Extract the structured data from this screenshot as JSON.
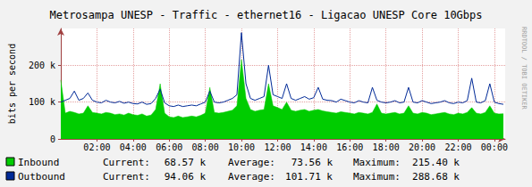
{
  "chart_data": {
    "type": "line",
    "title": "Metrosampa UNESP - Traffic - ethernet16 - Ligacao UNESP Core 10Gbps",
    "y_label": "bits per second",
    "watermark": "RRDTOOL / TOBI OETIKER",
    "stat_labels": [
      "Current:",
      "Average:",
      "Maximum:"
    ],
    "grid": true,
    "xlim": [
      0,
      24.6
    ],
    "xticks": [
      {
        "value": 2,
        "label": "02:00"
      },
      {
        "value": 4,
        "label": "04:00"
      },
      {
        "value": 6,
        "label": "06:00"
      },
      {
        "value": 8,
        "label": "08:00"
      },
      {
        "value": 10,
        "label": "10:00"
      },
      {
        "value": 12,
        "label": "12:00"
      },
      {
        "value": 14,
        "label": "14:00"
      },
      {
        "value": 16,
        "label": "16:00"
      },
      {
        "value": 18,
        "label": "18:00"
      },
      {
        "value": 20,
        "label": "20:00"
      },
      {
        "value": 22,
        "label": "22:00"
      },
      {
        "value": 24,
        "label": "00:00"
      }
    ],
    "ylim": [
      0,
      300000
    ],
    "yticks": [
      0,
      {
        "value": 100000,
        "label": "100 k"
      },
      {
        "value": 200000,
        "label": "200 k"
      }
    ],
    "x": [
      0,
      0.25,
      0.5,
      0.75,
      1,
      1.25,
      1.5,
      1.75,
      2,
      2.25,
      2.5,
      2.75,
      3,
      3.25,
      3.5,
      3.75,
      4,
      4.25,
      4.5,
      4.75,
      5,
      5.25,
      5.5,
      5.75,
      6,
      6.25,
      6.5,
      6.75,
      7,
      7.25,
      7.5,
      7.75,
      8,
      8.25,
      8.5,
      8.75,
      9,
      9.25,
      9.5,
      9.75,
      10,
      10.25,
      10.5,
      10.75,
      11,
      11.25,
      11.5,
      11.75,
      12,
      12.25,
      12.5,
      12.75,
      13,
      13.25,
      13.5,
      13.75,
      14,
      14.25,
      14.5,
      14.75,
      15,
      15.25,
      15.5,
      15.75,
      16,
      16.25,
      16.5,
      16.75,
      17,
      17.25,
      17.5,
      17.75,
      18,
      18.25,
      18.5,
      18.75,
      19,
      19.25,
      19.5,
      19.75,
      20,
      20.25,
      20.5,
      20.75,
      21,
      21.25,
      21.5,
      21.75,
      22,
      22.25,
      22.5,
      22.75,
      23,
      23.25,
      23.5,
      23.75,
      24,
      24.25,
      24.5
    ],
    "series": [
      {
        "name": "Inbound",
        "type": "area",
        "color": "#00cc00",
        "values": [
          160000,
          70000,
          75000,
          72000,
          68000,
          70000,
          90000,
          72000,
          70000,
          68000,
          72000,
          70000,
          66000,
          68000,
          65000,
          70000,
          66000,
          64000,
          68000,
          62000,
          65000,
          80000,
          150000,
          70000,
          60000,
          58000,
          62000,
          58000,
          60000,
          62000,
          60000,
          64000,
          70000,
          140000,
          72000,
          70000,
          72000,
          75000,
          78000,
          90000,
          215400,
          110000,
          80000,
          75000,
          78000,
          80000,
          150000,
          90000,
          85000,
          80000,
          100000,
          78000,
          75000,
          78000,
          80000,
          75000,
          78000,
          80000,
          76000,
          74000,
          72000,
          70000,
          74000,
          72000,
          70000,
          68000,
          72000,
          70000,
          68000,
          72000,
          95000,
          70000,
          68000,
          70000,
          72000,
          68000,
          70000,
          90000,
          70000,
          68000,
          72000,
          70000,
          66000,
          68000,
          70000,
          72000,
          68000,
          66000,
          70000,
          68000,
          72000,
          85000,
          70000,
          68000,
          72000,
          90000,
          70000,
          68000,
          68570
        ],
        "stats": [
          {
            "value": 68570,
            "label": "68.57 k"
          },
          {
            "value": 73560,
            "label": "73.56 k"
          },
          {
            "value": 215400,
            "label": "215.40 k"
          }
        ]
      },
      {
        "name": "Outbound",
        "type": "line",
        "color": "#002a97",
        "values": [
          100000,
          105000,
          110000,
          130000,
          105000,
          110000,
          125000,
          105000,
          100000,
          98000,
          105000,
          100000,
          98000,
          102000,
          97000,
          100000,
          96000,
          95000,
          100000,
          94000,
          96000,
          110000,
          135000,
          98000,
          90000,
          88000,
          92000,
          88000,
          90000,
          92000,
          90000,
          95000,
          100000,
          130000,
          100000,
          98000,
          100000,
          105000,
          110000,
          120000,
          288680,
          150000,
          110000,
          105000,
          110000,
          115000,
          200000,
          120000,
          115000,
          110000,
          150000,
          110000,
          105000,
          110000,
          115000,
          108000,
          112000,
          140000,
          108000,
          105000,
          104000,
          100000,
          108000,
          104000,
          100000,
          98000,
          104000,
          100000,
          98000,
          140000,
          105000,
          100000,
          98000,
          100000,
          104000,
          98000,
          100000,
          140000,
          100000,
          98000,
          104000,
          100000,
          96000,
          98000,
          100000,
          104000,
          98000,
          96000,
          100000,
          98000,
          104000,
          165000,
          100000,
          98000,
          104000,
          150000,
          100000,
          96000,
          94060
        ],
        "stats": [
          {
            "value": 94060,
            "label": "94.06 k"
          },
          {
            "value": 101710,
            "label": "101.71 k"
          },
          {
            "value": 288680,
            "label": "288.68 k"
          }
        ]
      }
    ]
  }
}
